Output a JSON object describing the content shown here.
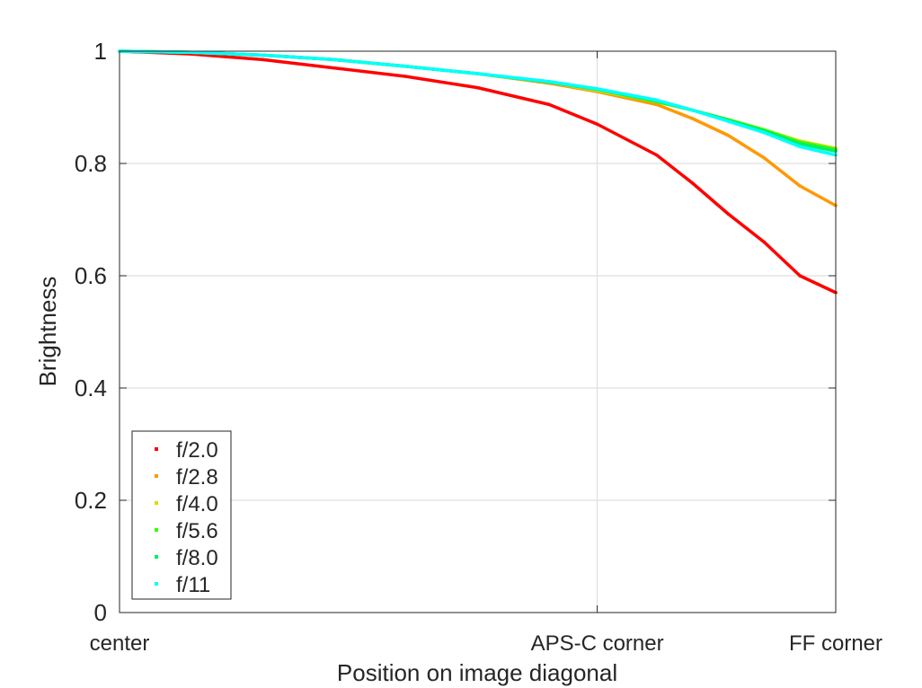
{
  "chart_data": {
    "type": "line",
    "xlabel": "Position on image diagonal",
    "ylabel": "Brightness",
    "xlim": [
      0,
      1
    ],
    "ylim": [
      0,
      1
    ],
    "x_ticks": [
      {
        "value": 0,
        "label": "center"
      },
      {
        "value": 0.667,
        "label": "APS-C corner"
      },
      {
        "value": 1,
        "label": "FF corner"
      }
    ],
    "y_ticks": [
      {
        "value": 0,
        "label": "0"
      },
      {
        "value": 0.2,
        "label": "0.2"
      },
      {
        "value": 0.4,
        "label": "0.4"
      },
      {
        "value": 0.6,
        "label": "0.6"
      },
      {
        "value": 0.8,
        "label": "0.8"
      },
      {
        "value": 1,
        "label": "1"
      }
    ],
    "grid": true,
    "legend_position": "bottom-left",
    "x": [
      0,
      0.1,
      0.2,
      0.3,
      0.4,
      0.5,
      0.6,
      0.667,
      0.75,
      0.8,
      0.85,
      0.9,
      0.95,
      1.0
    ],
    "series": [
      {
        "name": "f/2.0",
        "color": "#ff0000",
        "values": [
          1.0,
          0.995,
          0.985,
          0.97,
          0.955,
          0.935,
          0.905,
          0.87,
          0.815,
          0.765,
          0.71,
          0.66,
          0.6,
          0.57
        ]
      },
      {
        "name": "f/2.8",
        "color": "#ff9900",
        "values": [
          1.0,
          0.998,
          0.993,
          0.985,
          0.973,
          0.96,
          0.943,
          0.928,
          0.905,
          0.88,
          0.85,
          0.81,
          0.76,
          0.725
        ]
      },
      {
        "name": "f/4.0",
        "color": "#dddd00",
        "values": [
          1.0,
          0.998,
          0.993,
          0.985,
          0.973,
          0.96,
          0.945,
          0.93,
          0.91,
          0.895,
          0.878,
          0.86,
          0.84,
          0.827
        ]
      },
      {
        "name": "f/5.6",
        "color": "#33ff00",
        "values": [
          1.0,
          0.998,
          0.993,
          0.985,
          0.973,
          0.96,
          0.945,
          0.932,
          0.91,
          0.895,
          0.878,
          0.86,
          0.838,
          0.825
        ]
      },
      {
        "name": "f/8.0",
        "color": "#00ee66",
        "values": [
          1.0,
          0.998,
          0.993,
          0.985,
          0.973,
          0.96,
          0.945,
          0.932,
          0.912,
          0.895,
          0.877,
          0.858,
          0.835,
          0.822
        ]
      },
      {
        "name": "f/11",
        "color": "#00ffff",
        "values": [
          1.0,
          0.998,
          0.993,
          0.985,
          0.973,
          0.96,
          0.946,
          0.933,
          0.913,
          0.895,
          0.875,
          0.855,
          0.83,
          0.815
        ]
      }
    ]
  }
}
